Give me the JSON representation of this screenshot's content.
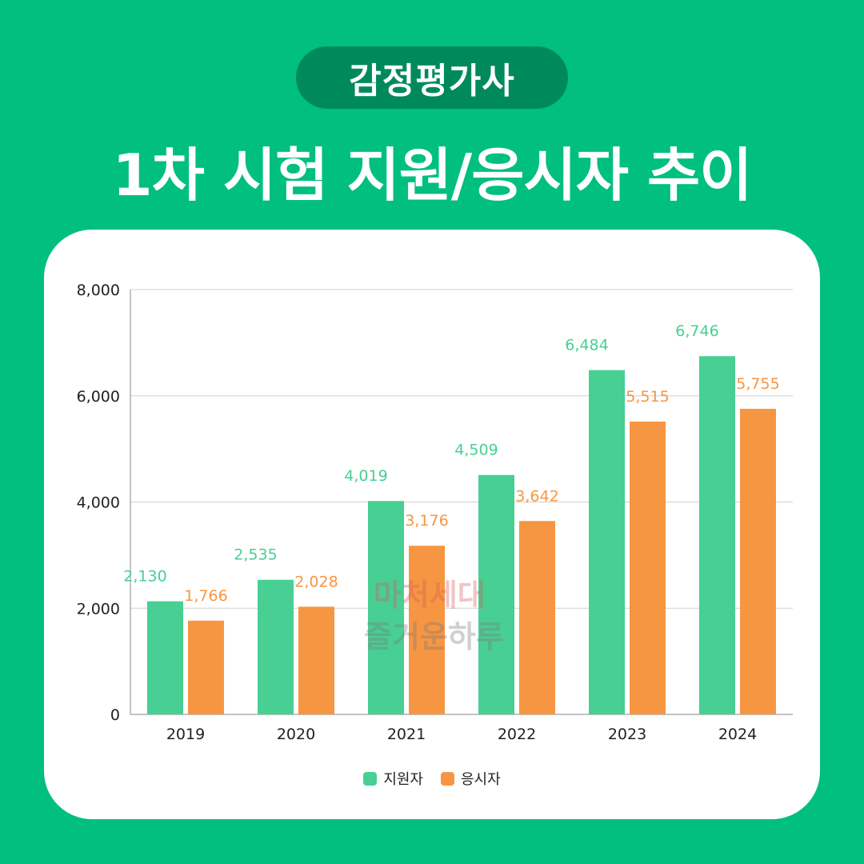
{
  "header": {
    "badge": "감정평가사",
    "title": "1차 시험 지원/응시자 추이"
  },
  "watermark": {
    "line1": "마처세대",
    "line2": "즐거운하루"
  },
  "colors": {
    "background": "#00bf7f",
    "badge": "#008a5c",
    "applicants": "#48cf94",
    "examinees": "#f79642"
  },
  "chart_data": {
    "type": "bar",
    "categories": [
      "2019",
      "2020",
      "2021",
      "2022",
      "2023",
      "2024"
    ],
    "series": [
      {
        "name": "지원자",
        "values": [
          2130,
          2535,
          4019,
          4509,
          6484,
          6746
        ],
        "labels": [
          "2,130",
          "2,535",
          "4,019",
          "4,509",
          "6,484",
          "6,746"
        ]
      },
      {
        "name": "응시자",
        "values": [
          1766,
          2028,
          3176,
          3642,
          5515,
          5755
        ],
        "labels": [
          "1,766",
          "2,028",
          "3,176",
          "3,642",
          "5,515",
          "5,755"
        ]
      }
    ],
    "ylim": [
      0,
      8000
    ],
    "yticks": [
      0,
      2000,
      4000,
      6000,
      8000
    ],
    "ytick_labels": [
      "0",
      "2,000",
      "4,000",
      "6,000",
      "8,000"
    ],
    "grid": true,
    "legend_position": "bottom-center"
  }
}
